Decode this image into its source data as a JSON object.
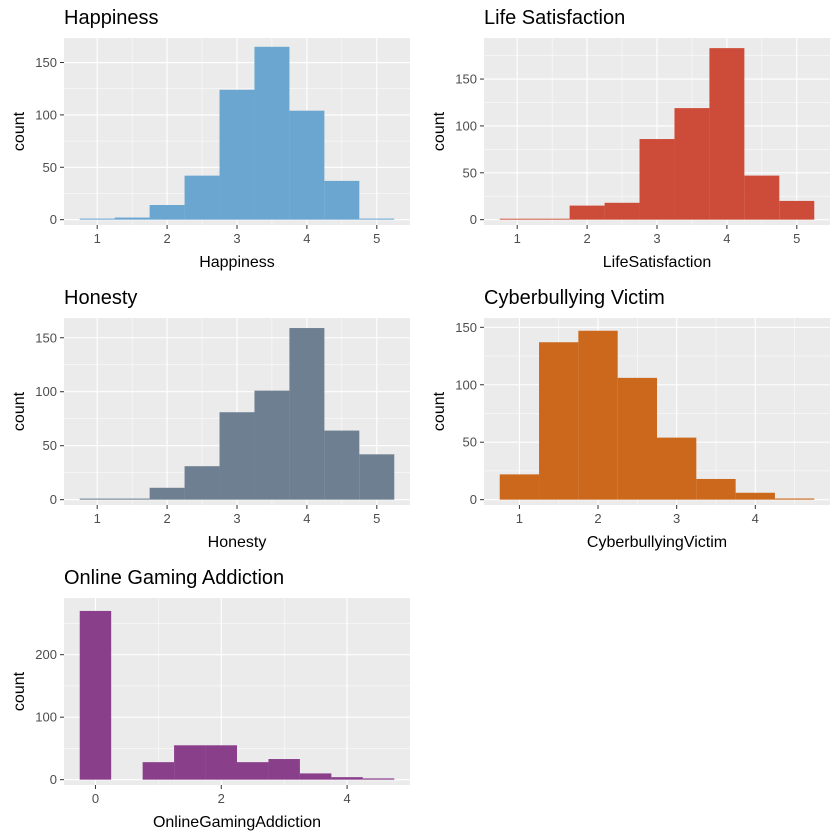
{
  "chart_data": [
    {
      "type": "bar",
      "title": "Happiness",
      "xlabel": "Happiness",
      "ylabel": "count",
      "color": "#6aa6cf",
      "xlim": [
        0.75,
        5.25
      ],
      "ylim": [
        0,
        170
      ],
      "xticks": [
        1,
        2,
        3,
        4,
        5
      ],
      "yticks": [
        0,
        50,
        100,
        150
      ],
      "bins": [
        {
          "x0": 0.75,
          "x1": 1.25,
          "count": 1
        },
        {
          "x0": 1.25,
          "x1": 1.75,
          "count": 2
        },
        {
          "x0": 1.75,
          "x1": 2.25,
          "count": 14
        },
        {
          "x0": 2.25,
          "x1": 2.75,
          "count": 42
        },
        {
          "x0": 2.75,
          "x1": 3.25,
          "count": 124
        },
        {
          "x0": 3.25,
          "x1": 3.75,
          "count": 165
        },
        {
          "x0": 3.75,
          "x1": 4.25,
          "count": 104
        },
        {
          "x0": 4.25,
          "x1": 4.75,
          "count": 37
        },
        {
          "x0": 4.75,
          "x1": 5.25,
          "count": 1
        }
      ]
    },
    {
      "type": "bar",
      "title": "Life Satisfaction",
      "xlabel": "LifeSatisfaction",
      "ylabel": "count",
      "color": "#cd4c39",
      "xlim": [
        0.75,
        5.25
      ],
      "ylim": [
        0,
        190
      ],
      "xticks": [
        1,
        2,
        3,
        4,
        5
      ],
      "yticks": [
        0,
        50,
        100,
        150
      ],
      "bins": [
        {
          "x0": 0.75,
          "x1": 1.25,
          "count": 1
        },
        {
          "x0": 1.25,
          "x1": 1.75,
          "count": 1
        },
        {
          "x0": 1.75,
          "x1": 2.25,
          "count": 15
        },
        {
          "x0": 2.25,
          "x1": 2.75,
          "count": 18
        },
        {
          "x0": 2.75,
          "x1": 3.25,
          "count": 86
        },
        {
          "x0": 3.25,
          "x1": 3.75,
          "count": 119
        },
        {
          "x0": 3.75,
          "x1": 4.25,
          "count": 183
        },
        {
          "x0": 4.25,
          "x1": 4.75,
          "count": 47
        },
        {
          "x0": 4.75,
          "x1": 5.25,
          "count": 20
        }
      ]
    },
    {
      "type": "bar",
      "title": "Honesty",
      "xlabel": "Honesty",
      "ylabel": "count",
      "color": "#6d7f91",
      "xlim": [
        0.75,
        5.25
      ],
      "ylim": [
        0,
        165
      ],
      "xticks": [
        1,
        2,
        3,
        4,
        5
      ],
      "yticks": [
        0,
        50,
        100,
        150
      ],
      "bins": [
        {
          "x0": 0.75,
          "x1": 1.25,
          "count": 1
        },
        {
          "x0": 1.25,
          "x1": 1.75,
          "count": 1
        },
        {
          "x0": 1.75,
          "x1": 2.25,
          "count": 11
        },
        {
          "x0": 2.25,
          "x1": 2.75,
          "count": 31
        },
        {
          "x0": 2.75,
          "x1": 3.25,
          "count": 81
        },
        {
          "x0": 3.25,
          "x1": 3.75,
          "count": 101
        },
        {
          "x0": 3.75,
          "x1": 4.25,
          "count": 159
        },
        {
          "x0": 4.25,
          "x1": 4.75,
          "count": 64
        },
        {
          "x0": 4.75,
          "x1": 5.25,
          "count": 42
        }
      ]
    },
    {
      "type": "bar",
      "title": "Cyberbullying Victim",
      "xlabel": "CyberbullyingVictim",
      "ylabel": "count",
      "color": "#cb681c",
      "xlim": [
        0.75,
        4.75
      ],
      "ylim": [
        0,
        155
      ],
      "xticks": [
        1,
        2,
        3,
        4
      ],
      "yticks": [
        0,
        50,
        100,
        150
      ],
      "bins": [
        {
          "x0": 0.75,
          "x1": 1.25,
          "count": 22
        },
        {
          "x0": 1.25,
          "x1": 1.75,
          "count": 137
        },
        {
          "x0": 1.75,
          "x1": 2.25,
          "count": 147
        },
        {
          "x0": 2.25,
          "x1": 2.75,
          "count": 106
        },
        {
          "x0": 2.75,
          "x1": 3.25,
          "count": 54
        },
        {
          "x0": 3.25,
          "x1": 3.75,
          "count": 18
        },
        {
          "x0": 3.75,
          "x1": 4.25,
          "count": 6
        },
        {
          "x0": 4.25,
          "x1": 4.75,
          "count": 1
        }
      ]
    },
    {
      "type": "bar",
      "title": "Online Gaming Addiction",
      "xlabel": "OnlineGamingAddiction",
      "ylabel": "count",
      "color": "#8a3f8a",
      "xlim": [
        -0.25,
        4.75
      ],
      "ylim": [
        0,
        285
      ],
      "xticks": [
        0,
        2,
        4
      ],
      "yticks": [
        0,
        100,
        200
      ],
      "bins": [
        {
          "x0": -0.25,
          "x1": 0.25,
          "count": 270
        },
        {
          "x0": 0.75,
          "x1": 1.25,
          "count": 28
        },
        {
          "x0": 1.25,
          "x1": 1.75,
          "count": 55
        },
        {
          "x0": 1.75,
          "x1": 2.25,
          "count": 55
        },
        {
          "x0": 2.25,
          "x1": 2.75,
          "count": 28
        },
        {
          "x0": 2.75,
          "x1": 3.25,
          "count": 33
        },
        {
          "x0": 3.25,
          "x1": 3.75,
          "count": 10
        },
        {
          "x0": 3.75,
          "x1": 4.25,
          "count": 4
        },
        {
          "x0": 4.25,
          "x1": 4.75,
          "count": 2
        }
      ]
    }
  ]
}
